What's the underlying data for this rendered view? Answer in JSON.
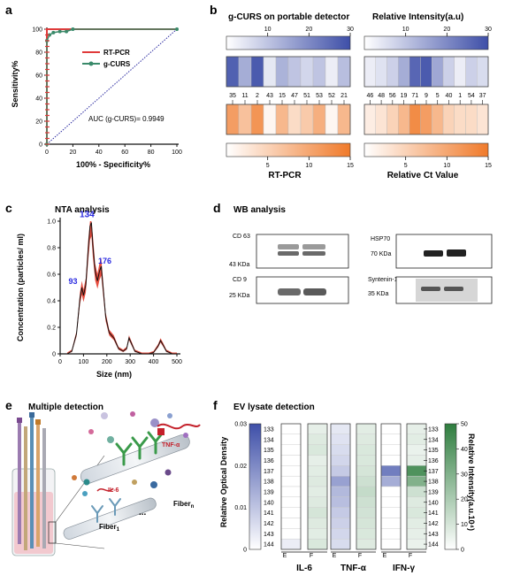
{
  "panels": {
    "a": {
      "label": "a",
      "xlabel": "100% - Specificity%",
      "ylabel": "Sensitivity%",
      "xticks": [
        "0",
        "20",
        "40",
        "60",
        "80",
        "100"
      ],
      "yticks": [
        "0",
        "20",
        "40",
        "60",
        "80",
        "100"
      ],
      "legend": [
        "RT-PCR",
        "g-CURS"
      ],
      "auc": "AUC (g-CURS)= 0.9949"
    },
    "b": {
      "label": "b",
      "title_left": "g-CURS on portable detector",
      "title_right": "Relative Intensity(a.u)",
      "top_ticks": [
        "10",
        "20",
        "30"
      ],
      "bottom_ticks": [
        "5",
        "10",
        "15"
      ],
      "samples_left": [
        "35",
        "11",
        "2",
        "43",
        "15",
        "47",
        "51",
        "53",
        "52",
        "21"
      ],
      "samples_right": [
        "46",
        "48",
        "56",
        "19",
        "71",
        "9",
        "5",
        "40",
        "1",
        "54",
        "37"
      ],
      "xlabel_left": "RT-PCR",
      "xlabel_right": "Relative Ct Value"
    },
    "c": {
      "label": "c",
      "title": "NTA analysis",
      "xlabel": "Size (nm)",
      "ylabel": "Concentration (particles/ ml)",
      "xticks": [
        "0",
        "100",
        "200",
        "300",
        "400",
        "500"
      ],
      "yticks": [
        "0",
        "0.2",
        "0.4",
        "0.6",
        "0.8",
        "1.0"
      ],
      "peaks": [
        "93",
        "134",
        "176"
      ]
    },
    "d": {
      "label": "d",
      "title": "WB analysis",
      "blots": [
        {
          "name": "CD 63",
          "mw": "43 KDa"
        },
        {
          "name": "CD 9",
          "mw": "25 KDa"
        },
        {
          "name": "HSP70",
          "mw": "70 KDa"
        },
        {
          "name": "Syntenin-1",
          "mw": "35 KDa"
        }
      ]
    },
    "e": {
      "label": "e",
      "title": "Multiple detection",
      "tnf": "TNF-α",
      "il6": "IL-6",
      "fiber_n": "Fiber",
      "fiber_n_sub": "n",
      "fiber_1": "Fiber",
      "fiber_1_sub": "1",
      "dots": "..."
    },
    "f": {
      "label": "f",
      "title": "EV lysate detection",
      "ylabel_left": "Relative Optical Density",
      "ylabel_right": "Relative  Intensity(a.u.10⁴)",
      "left_ticks": [
        "0.03",
        "0.02",
        "0.01",
        "0"
      ],
      "right_ticks": [
        "50",
        "40",
        "30",
        "20",
        "10",
        "0"
      ],
      "groups": [
        "IL-6",
        "TNF-α",
        "IFN-γ"
      ],
      "ef": [
        "E",
        "F"
      ],
      "rows": [
        "133",
        "134",
        "135",
        "136",
        "137",
        "138",
        "139",
        "140",
        "141",
        "142",
        "143",
        "144"
      ]
    }
  },
  "chart_data": [
    {
      "type": "line",
      "panel": "a",
      "xlabel": "100% - Specificity%",
      "ylabel": "Sensitivity%",
      "xlim": [
        0,
        100
      ],
      "ylim": [
        0,
        100
      ],
      "series": [
        {
          "name": "RT-PCR",
          "x": [
            0,
            0,
            100
          ],
          "y": [
            0,
            100,
            100
          ]
        },
        {
          "name": "g-CURS",
          "x": [
            0,
            0,
            2,
            5,
            10,
            15,
            20,
            100
          ],
          "y": [
            0,
            90,
            95,
            97,
            98,
            98,
            100,
            100
          ]
        }
      ],
      "colors": {
        "RT-PCR": "#e03a3a",
        "g-CURS": "#3a8a6a",
        "diagonal": "#2a2aa0"
      }
    },
    {
      "type": "line",
      "panel": "c",
      "xlabel": "Size (nm)",
      "ylabel": "Concentration (particles/ ml)",
      "xlim": [
        0,
        500
      ],
      "ylim": [
        0,
        1.0
      ],
      "series": [
        {
          "name": "",
          "x": [
            30,
            50,
            70,
            85,
            93,
            100,
            110,
            120,
            128,
            134,
            140,
            150,
            160,
            168,
            176,
            185,
            195,
            210,
            230,
            250,
            270,
            285,
            295,
            305,
            320,
            350,
            380,
            400,
            420,
            430,
            440,
            455,
            480,
            500
          ],
          "y": [
            0,
            0.02,
            0.15,
            0.42,
            0.5,
            0.44,
            0.52,
            0.78,
            0.96,
            0.99,
            0.82,
            0.62,
            0.55,
            0.62,
            0.66,
            0.48,
            0.28,
            0.16,
            0.12,
            0.04,
            0.02,
            0.04,
            0.12,
            0.08,
            0.02,
            0.0,
            0.0,
            0.01,
            0.06,
            0.1,
            0.07,
            0.02,
            0.0,
            0.0
          ]
        }
      ],
      "peak_labels": [
        {
          "x": 93,
          "y": 0.5,
          "text": "93"
        },
        {
          "x": 134,
          "y": 0.99,
          "text": "134"
        },
        {
          "x": 176,
          "y": 0.66,
          "text": "176"
        }
      ]
    },
    {
      "type": "heatmap",
      "panel": "b",
      "rows": [
        "g-CURS",
        "RT-PCR"
      ],
      "groups": [
        {
          "samples": [
            "35",
            "11",
            "2",
            "43",
            "15",
            "47",
            "51",
            "53",
            "52",
            "21"
          ],
          "g_curs_relative_intensity": [
            27,
            14,
            28,
            4,
            13,
            10,
            7,
            10,
            3,
            11
          ],
          "rt_pcr_relative_ct": [
            11,
            7,
            12,
            1,
            8,
            4,
            6,
            9,
            1,
            8
          ]
        },
        {
          "samples": [
            "46",
            "48",
            "56",
            "19",
            "71",
            "9",
            "5",
            "40",
            "1",
            "54",
            "37"
          ],
          "g_curs_relative_intensity": [
            3,
            5,
            8,
            14,
            26,
            28,
            15,
            8,
            3,
            8,
            6
          ],
          "rt_pcr_relative_ct": [
            2,
            3,
            5,
            8,
            13,
            11,
            8,
            5,
            4,
            4,
            3
          ]
        }
      ],
      "scales": {
        "intensity": [
          0,
          30
        ],
        "ct": [
          0,
          15
        ]
      }
    },
    {
      "type": "heatmap",
      "panel": "f",
      "rows": [
        "133",
        "134",
        "135",
        "136",
        "137",
        "138",
        "139",
        "140",
        "141",
        "142",
        "143",
        "144"
      ],
      "columns": [
        "IL-6 E",
        "IL-6 F",
        "TNF-α E",
        "TNF-α F",
        "IFN-γ E",
        "IFN-γ F"
      ],
      "E_scale": [
        0,
        0.03
      ],
      "F_scale": [
        0,
        50
      ],
      "values": {
        "IL-6 E": [
          0,
          0,
          0,
          0,
          0,
          0,
          0,
          0,
          0,
          0,
          0,
          0.003
        ],
        "IL-6 F": [
          6,
          8,
          9,
          6,
          7,
          8,
          7,
          8,
          10,
          8,
          7,
          9
        ],
        "TNF-α E": [
          0.004,
          0.005,
          0.006,
          0.007,
          0.009,
          0.016,
          0.012,
          0.011,
          0.009,
          0.008,
          0.007,
          0.006
        ],
        "TNF-α F": [
          7,
          8,
          9,
          9,
          10,
          12,
          14,
          12,
          11,
          10,
          9,
          8
        ],
        "IFN-γ E": [
          0,
          0,
          0,
          0,
          0.022,
          0.014,
          0,
          0,
          0,
          0,
          0,
          0
        ],
        "IFN-γ F": [
          6,
          7,
          5,
          6,
          42,
          30,
          12,
          8,
          9,
          7,
          6,
          5
        ]
      }
    }
  ]
}
